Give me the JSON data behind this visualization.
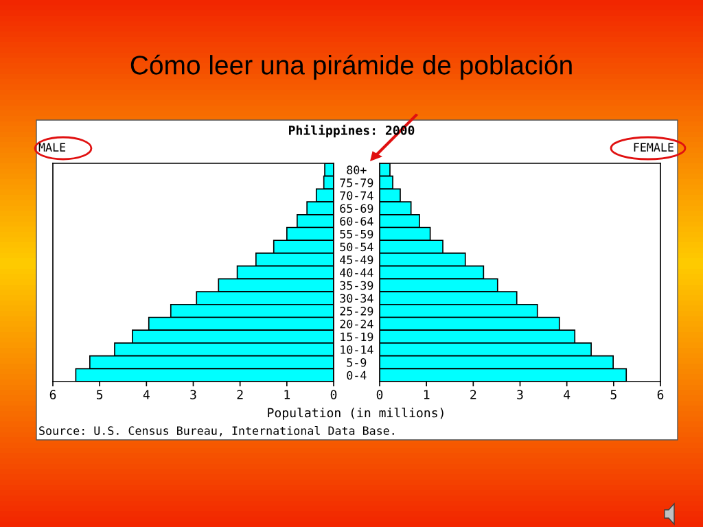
{
  "chart_data": [
    {
      "type": "bar",
      "orientation": "horizontal",
      "title": "Cómo leer una pirámide de población",
      "subtitle": "Philippines: 2000",
      "xlabel": "Population (in millions)",
      "annotations": [
        "MALE",
        "Source: U.S. Census Bureau, International Data Base."
      ],
      "categories": [
        "80+",
        "75-79",
        "70-74",
        "65-69",
        "60-64",
        "55-59",
        "50-54",
        "45-49",
        "40-44",
        "35-39",
        "30-34",
        "25-29",
        "20-24",
        "15-19",
        "10-14",
        "5-9",
        "0-4"
      ],
      "values": [
        0.19,
        0.21,
        0.37,
        0.57,
        0.78,
        1.0,
        1.28,
        1.66,
        2.06,
        2.46,
        2.93,
        3.48,
        3.95,
        4.3,
        4.68,
        5.21,
        5.51
      ],
      "color": "#00ffff",
      "xlim": [
        6,
        0
      ],
      "xticks": [
        6,
        5,
        4,
        3,
        2,
        1,
        0
      ],
      "grid": false,
      "legend": false
    },
    {
      "type": "bar",
      "orientation": "horizontal",
      "annotations": [
        "FEMALE"
      ],
      "categories": [
        null,
        null,
        null,
        null,
        null,
        null,
        null,
        null,
        null,
        null,
        null,
        null,
        null,
        null,
        null,
        null,
        null
      ],
      "values": [
        0.22,
        0.28,
        0.44,
        0.67,
        0.85,
        1.08,
        1.35,
        1.83,
        2.22,
        2.52,
        2.93,
        3.37,
        3.84,
        4.17,
        4.52,
        4.99,
        5.27
      ],
      "color": "#00ffff",
      "xlim": [
        0,
        6
      ],
      "xticks": [
        0,
        1,
        2,
        3,
        4,
        5,
        6
      ],
      "tick_labels": "x",
      "grid": false,
      "legend": false
    }
  ]
}
